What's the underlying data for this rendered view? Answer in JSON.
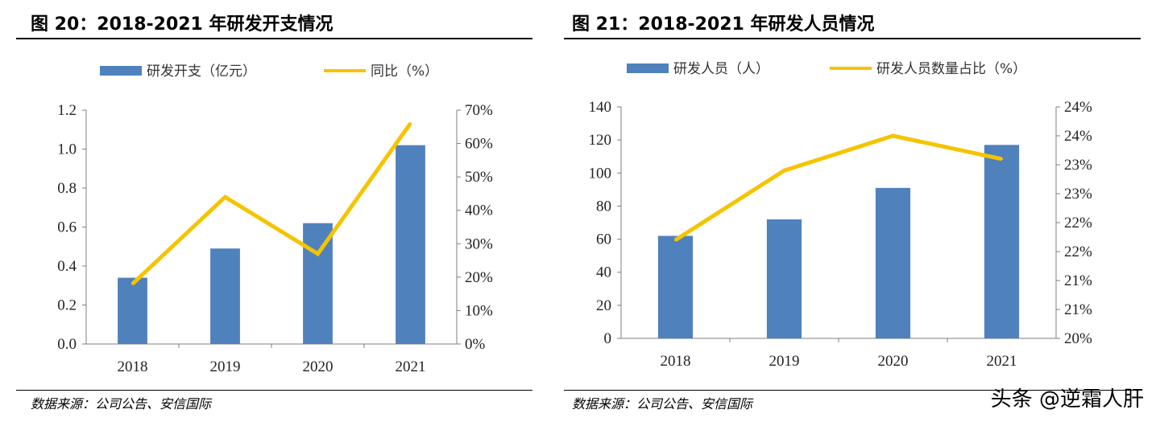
{
  "left": {
    "title": "图 20：2018-2021 年研发开支情况",
    "source": "数据来源：公司公告、安信国际"
  },
  "right": {
    "title": "图 21：2018-2021 年研发人员情况",
    "source": "数据来源：公司公告、安信国际"
  },
  "watermark": "头条 @逆霜人肝",
  "colors": {
    "bar": "#4f81bd",
    "line": "#f5c400",
    "axis": "#7f7f7f"
  },
  "chart_data": [
    {
      "type": "bar",
      "categories": [
        "2018",
        "2019",
        "2020",
        "2021"
      ],
      "series": [
        {
          "name": "研发开支（亿元）",
          "type": "bar",
          "axis": "left",
          "values": [
            0.34,
            0.49,
            0.62,
            1.02
          ]
        },
        {
          "name": "同比（%）",
          "type": "line",
          "axis": "right",
          "values": [
            18,
            44,
            27,
            66
          ]
        }
      ],
      "ylim": [
        0,
        1.2
      ],
      "yticks": [
        "0.0",
        "0.2",
        "0.4",
        "0.6",
        "0.8",
        "1.0",
        "1.2"
      ],
      "y2lim": [
        0,
        70
      ],
      "y2ticks": [
        "0%",
        "10%",
        "20%",
        "30%",
        "40%",
        "50%",
        "60%",
        "70%"
      ],
      "legend": "top"
    },
    {
      "type": "bar",
      "categories": [
        "2018",
        "2019",
        "2020",
        "2021"
      ],
      "series": [
        {
          "name": "研发人员（人）",
          "type": "bar",
          "axis": "left",
          "values": [
            62,
            72,
            91,
            117
          ]
        },
        {
          "name": "研发人员数量占比（%）",
          "type": "line",
          "axis": "right",
          "values": [
            21.7,
            22.9,
            23.5,
            23.1
          ]
        }
      ],
      "ylim": [
        0,
        140
      ],
      "yticks": [
        "0",
        "20",
        "40",
        "60",
        "80",
        "100",
        "120",
        "140"
      ],
      "y2lim": [
        20,
        24
      ],
      "y2ticks": [
        "20%",
        "21%",
        "21%",
        "22%",
        "22%",
        "23%",
        "23%",
        "24%",
        "24%"
      ],
      "legend": "top"
    }
  ]
}
